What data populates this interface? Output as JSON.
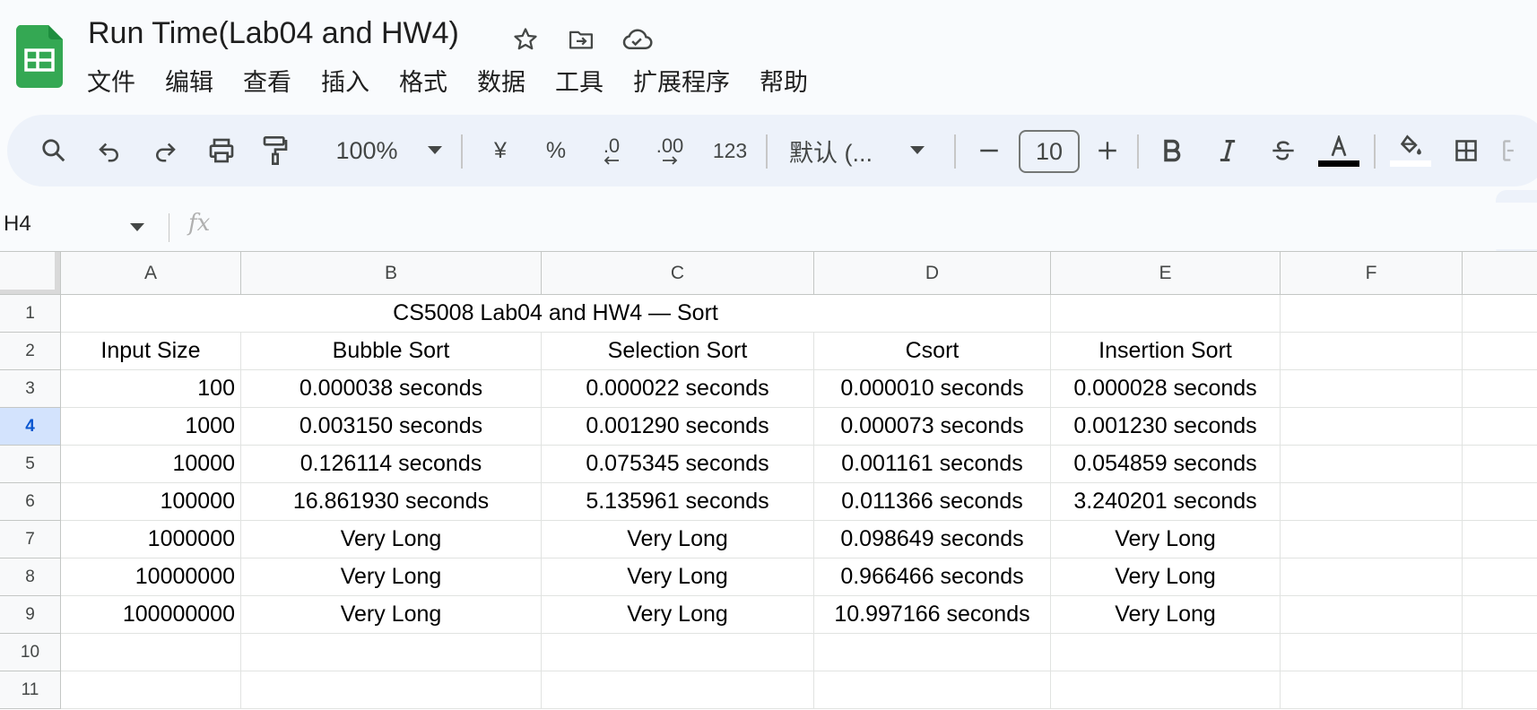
{
  "document": {
    "title": "Run Time(Lab04 and HW4)",
    "icons": [
      "star-icon",
      "move-to-folder-icon",
      "cloud-saved-icon"
    ]
  },
  "menu": [
    "文件",
    "编辑",
    "查看",
    "插入",
    "格式",
    "数据",
    "工具",
    "扩展程序",
    "帮助"
  ],
  "toolbar": {
    "zoom": "100%",
    "currency": "¥",
    "percent": "%",
    "decrease_decimal": ".0",
    "increase_decimal": ".00",
    "number_format": "123",
    "font": "默认 (...",
    "font_size": "10",
    "minus": "−",
    "plus": "+",
    "colors": {
      "text_color": "#000000",
      "fill_color": "#ffffff"
    }
  },
  "formula_bar": {
    "cell_ref": "H4",
    "fx": "fx",
    "value": ""
  },
  "sheet": {
    "columns": [
      "A",
      "B",
      "C",
      "D",
      "E",
      "F"
    ],
    "rows": [
      "1",
      "2",
      "3",
      "4",
      "5",
      "6",
      "7",
      "8",
      "9",
      "10",
      "11"
    ],
    "active_row": "4",
    "title_cell": "CS5008 Lab04 and HW4 — Sort",
    "headers": [
      "Input Size",
      "Bubble Sort",
      "Selection Sort",
      "Csort",
      "Insertion Sort"
    ],
    "data": [
      [
        "100",
        "0.000038 seconds",
        "0.000022 seconds",
        "0.000010 seconds",
        "0.000028 seconds"
      ],
      [
        "1000",
        "0.003150 seconds",
        "0.001290 seconds",
        "0.000073 seconds",
        "0.001230 seconds"
      ],
      [
        "10000",
        "0.126114 seconds",
        "0.075345 seconds",
        "0.001161 seconds",
        "0.054859 seconds"
      ],
      [
        "100000",
        "16.861930 seconds",
        "5.135961 seconds",
        "0.011366 seconds",
        "3.240201 seconds"
      ],
      [
        "1000000",
        "Very Long",
        "Very Long",
        "0.098649 seconds",
        "Very Long"
      ],
      [
        "10000000",
        "Very Long",
        "Very Long",
        "0.966466 seconds",
        "Very Long"
      ],
      [
        "100000000",
        "Very Long",
        "Very Long",
        "10.997166 seconds",
        "Very Long"
      ]
    ]
  }
}
